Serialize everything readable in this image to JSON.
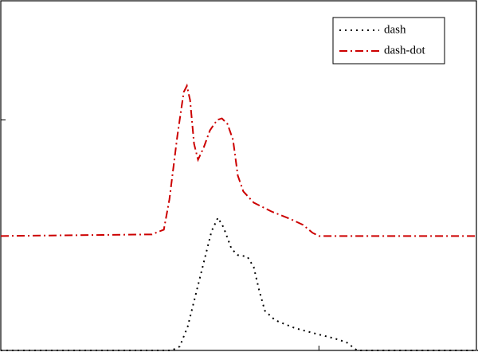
{
  "chart_data": {
    "type": "line",
    "series": [
      {
        "name": "dash",
        "color": "#000000",
        "style": "dotted",
        "x": [
          0,
          215,
          225,
          235,
          245,
          255,
          265,
          273,
          280,
          290,
          298,
          310,
          318,
          325,
          332,
          345,
          370,
          400,
          420,
          435,
          448,
          600
        ],
        "values": [
          0,
          0,
          5,
          30,
          70,
          110,
          150,
          167,
          155,
          128,
          120,
          118,
          105,
          75,
          50,
          38,
          28,
          20,
          15,
          10,
          0,
          0
        ]
      },
      {
        "name": "dash-dot",
        "color": "#cc0000",
        "style": "dash-dot",
        "x": [
          0,
          190,
          205,
          212,
          222,
          230,
          234,
          238,
          243,
          248,
          255,
          263,
          272,
          278,
          285,
          292,
          298,
          305,
          318,
          340,
          365,
          380,
          392,
          400,
          600
        ],
        "values": [
          144,
          146,
          152,
          190,
          270,
          325,
          333,
          315,
          260,
          240,
          255,
          277,
          290,
          292,
          285,
          265,
          220,
          200,
          186,
          175,
          165,
          158,
          148,
          144,
          144
        ]
      }
    ],
    "xlim": [
      0,
      598
    ],
    "ylim": [
      0,
      440
    ],
    "xticks": [
      400
    ],
    "yticks": [
      290
    ],
    "legend": "upper-right"
  }
}
